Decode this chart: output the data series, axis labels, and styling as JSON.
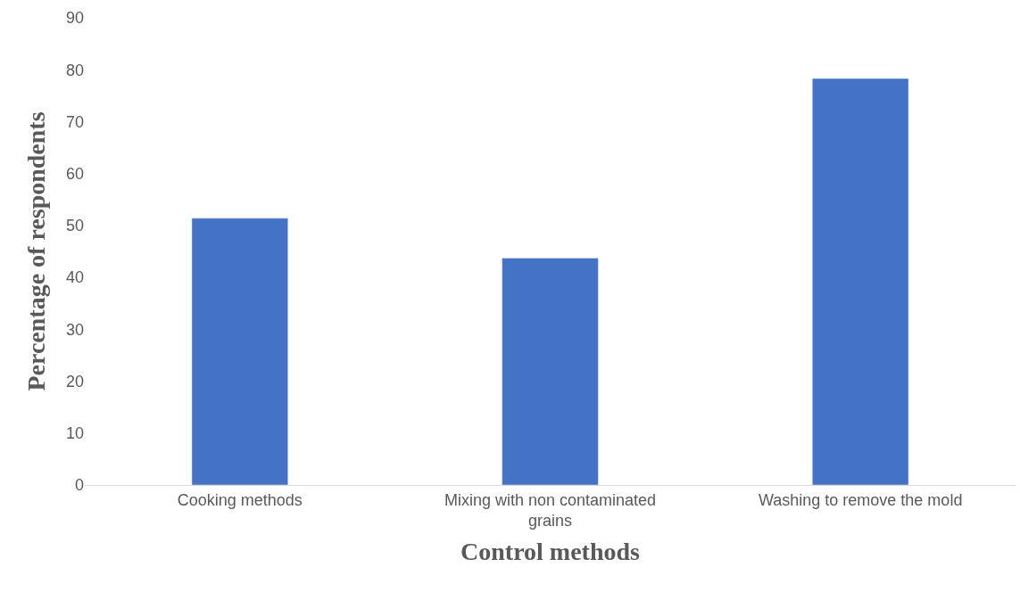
{
  "chart_data": {
    "type": "bar",
    "xlabel": "Control methods",
    "ylabel": "Percentage of respondents",
    "categories": [
      "Cooking methods",
      "Mixing with non contaminated grains",
      "Washing to remove the mold"
    ],
    "values": [
      51.4,
      43.7,
      78.3
    ],
    "color": "#4472c4",
    "ylim": [
      0,
      90
    ],
    "yticks": [
      0,
      10,
      20,
      30,
      40,
      50,
      60,
      70,
      80,
      90
    ],
    "grid": false,
    "legend": false
  }
}
